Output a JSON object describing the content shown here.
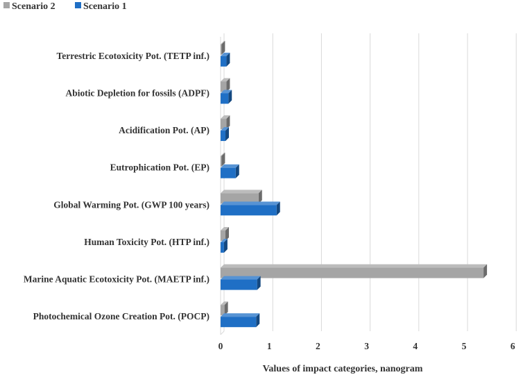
{
  "chart_data": {
    "type": "bar",
    "orientation": "horizontal",
    "style": "3d",
    "categories": [
      "Terrestric Ecotoxicity Pot. (TETP inf.)",
      "Abiotic Depletion for fossils (ADPF)",
      "Acidification Pot. (AP)",
      "Eutrophication Pot. (EP)",
      "Global Warming Pot. (GWP 100 years)",
      "Human Toxicity Pot. (HTP inf.)",
      "Marine Aquatic Ecotoxicity Pot. (MAETP inf.)",
      "Photochemical Ozone Creation Pot. (POCP)"
    ],
    "series": [
      {
        "name": "Scenario 2",
        "color": "#a5a5a5",
        "values": [
          0.02,
          0.12,
          0.12,
          0.02,
          0.78,
          0.1,
          5.4,
          0.08
        ]
      },
      {
        "name": "Scenario 1",
        "color": "#1f6fc5",
        "values": [
          0.12,
          0.16,
          0.1,
          0.31,
          1.15,
          0.07,
          0.75,
          0.73
        ]
      }
    ],
    "xlabel": "Values of impact categories, nanogram",
    "ylabel": "",
    "xlim": [
      0,
      6
    ],
    "xticks": [
      0,
      1,
      2,
      3,
      4,
      5,
      6
    ],
    "legend_position": "top-left",
    "grid": true
  }
}
